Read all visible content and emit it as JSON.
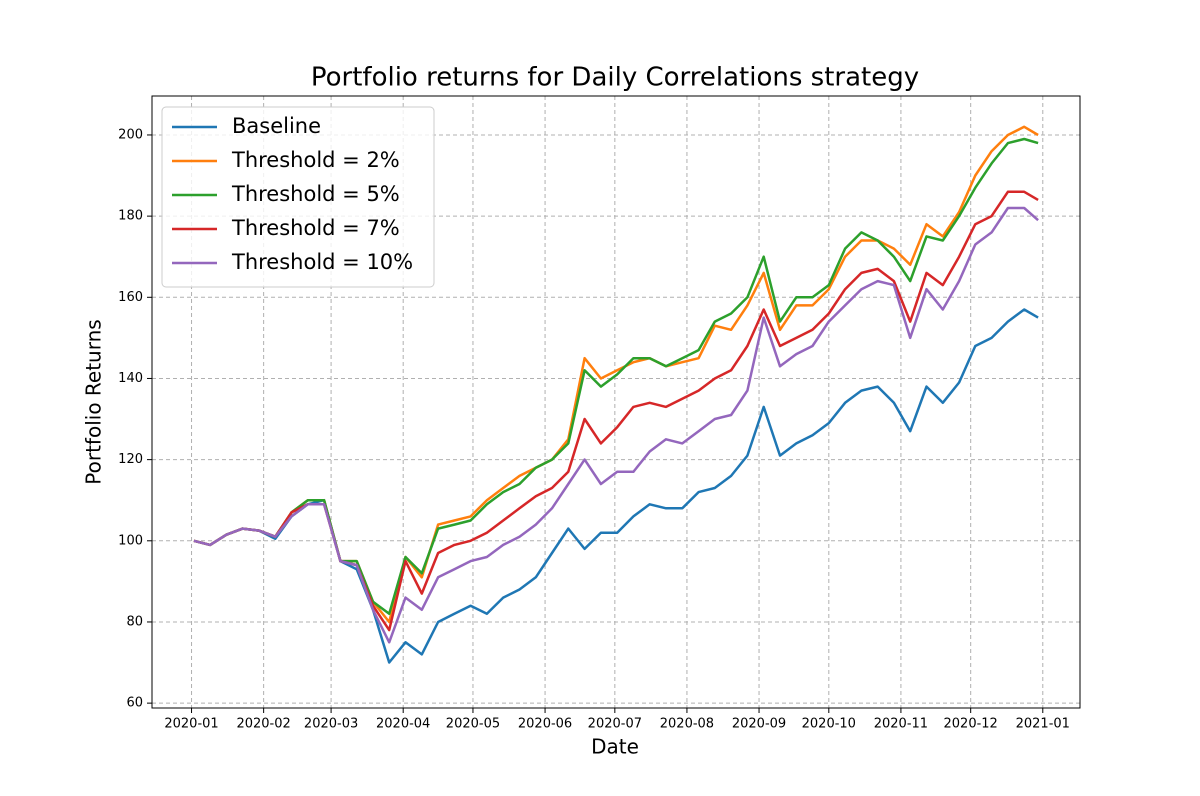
{
  "chart_data": {
    "type": "line",
    "title": "Portfolio returns for Daily Correlations strategy",
    "xlabel": "Date",
    "ylabel": "Portfolio Returns",
    "x": [
      1,
      8,
      15,
      22,
      29,
      36,
      43,
      50,
      57,
      64,
      71,
      78,
      85,
      92,
      99,
      106,
      113,
      120,
      127,
      134,
      141,
      148,
      155,
      162,
      169,
      176,
      183,
      190,
      197,
      204,
      211,
      218,
      225,
      232,
      239,
      246,
      253,
      260,
      267,
      274,
      281,
      288,
      295,
      302,
      309,
      316,
      323,
      330,
      337,
      344,
      351,
      358,
      364
    ],
    "xlim": [
      -17,
      382
    ],
    "xticks": [
      {
        "value": 0,
        "label": "2020-01"
      },
      {
        "value": 31,
        "label": "2020-02"
      },
      {
        "value": 60,
        "label": "2020-03"
      },
      {
        "value": 91,
        "label": "2020-04"
      },
      {
        "value": 121,
        "label": "2020-05"
      },
      {
        "value": 152,
        "label": "2020-06"
      },
      {
        "value": 182,
        "label": "2020-07"
      },
      {
        "value": 213,
        "label": "2020-08"
      },
      {
        "value": 244,
        "label": "2020-09"
      },
      {
        "value": 274,
        "label": "2020-10"
      },
      {
        "value": 305,
        "label": "2020-11"
      },
      {
        "value": 335,
        "label": "2020-12"
      },
      {
        "value": 366,
        "label": "2021-01"
      }
    ],
    "ylim": [
      58.8,
      209.6
    ],
    "yticks": [
      60,
      80,
      100,
      120,
      140,
      160,
      180,
      200
    ],
    "grid": true,
    "legend": "upper left",
    "series": [
      {
        "name": "Baseline",
        "color": "#1f77b4",
        "values": [
          100,
          99,
          101.5,
          103,
          102.5,
          100.5,
          106,
          109,
          110,
          95,
          93,
          83,
          70,
          75,
          72,
          80,
          82,
          84,
          82,
          86,
          88,
          91,
          97,
          103,
          98,
          102,
          102,
          106,
          109,
          108,
          108,
          112,
          113,
          116,
          121,
          133,
          121,
          124,
          126,
          129,
          134,
          137,
          138,
          134,
          127,
          138,
          134,
          139,
          148,
          150,
          154,
          157,
          155
        ]
      },
      {
        "name": "Threshold = 2%",
        "color": "#ff7f0e",
        "values": [
          100,
          99,
          101.5,
          103,
          102.5,
          101,
          107,
          110,
          110,
          95,
          95,
          85,
          80,
          96,
          91,
          104,
          105,
          106,
          110,
          113,
          116,
          118,
          120,
          125,
          145,
          140,
          142,
          144,
          145,
          143,
          144,
          145,
          153,
          152,
          158,
          166,
          152,
          158,
          158,
          162,
          170,
          174,
          174,
          172,
          168,
          178,
          175,
          181,
          190,
          196,
          200,
          202,
          200
        ]
      },
      {
        "name": "Threshold = 5%",
        "color": "#2ca02c",
        "values": [
          100,
          99,
          101.5,
          103,
          102.5,
          101,
          107,
          110,
          110,
          95,
          95,
          85,
          82,
          96,
          92,
          103,
          104,
          105,
          109,
          112,
          114,
          118,
          120,
          124,
          142,
          138,
          141,
          145,
          145,
          143,
          145,
          147,
          154,
          156,
          160,
          170,
          154,
          160,
          160,
          163,
          172,
          176,
          174,
          170,
          164,
          175,
          174,
          180,
          187,
          193,
          198,
          199,
          198
        ]
      },
      {
        "name": "Threshold = 7%",
        "color": "#d62728",
        "values": [
          100,
          99,
          101.5,
          103,
          102.5,
          101,
          107,
          109,
          109,
          95,
          94,
          84,
          78,
          95,
          87,
          97,
          99,
          100,
          102,
          105,
          108,
          111,
          113,
          117,
          130,
          124,
          128,
          133,
          134,
          133,
          135,
          137,
          140,
          142,
          148,
          157,
          148,
          150,
          152,
          156,
          162,
          166,
          167,
          164,
          154,
          166,
          163,
          170,
          178,
          180,
          186,
          186,
          184
        ]
      },
      {
        "name": "Threshold = 10%",
        "color": "#9467bd",
        "values": [
          100,
          99,
          101.5,
          103,
          102.5,
          101,
          106,
          109,
          109,
          95,
          94,
          83,
          75,
          86,
          83,
          91,
          93,
          95,
          96,
          99,
          101,
          104,
          108,
          114,
          120,
          114,
          117,
          117,
          122,
          125,
          124,
          127,
          130,
          131,
          137,
          155,
          143,
          146,
          148,
          154,
          158,
          162,
          164,
          163,
          150,
          162,
          157,
          164,
          173,
          176,
          182,
          182,
          179
        ]
      }
    ]
  }
}
